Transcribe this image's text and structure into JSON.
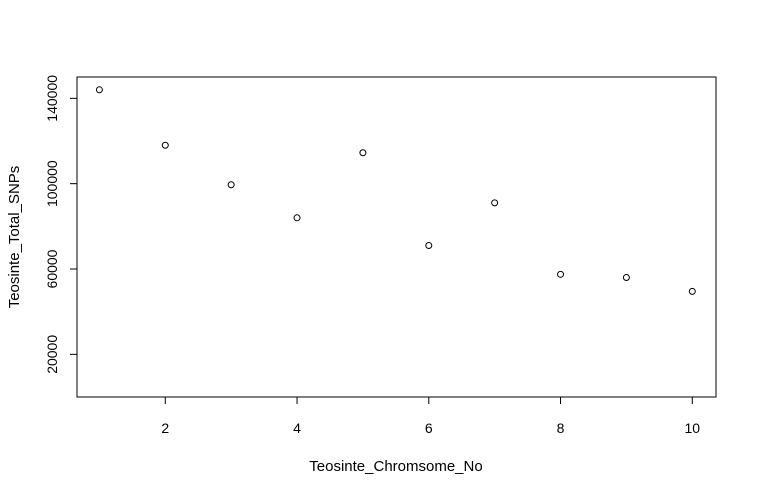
{
  "chart_data": {
    "type": "scatter",
    "xlabel": "Teosinte_Chromsome_No",
    "ylabel": "Teosinte_Total_SNPs",
    "x": [
      1,
      2,
      3,
      4,
      5,
      6,
      7,
      8,
      9,
      10
    ],
    "y": [
      144000,
      118000,
      99500,
      84000,
      114500,
      71000,
      91000,
      57500,
      56000,
      49500
    ],
    "xlim": [
      0.66,
      10.36
    ],
    "ylim": [
      0,
      150000
    ],
    "x_ticks": [
      2,
      4,
      6,
      8,
      10
    ],
    "x_tick_labels": [
      "2",
      "4",
      "6",
      "8",
      "10"
    ],
    "y_ticks": [
      20000,
      60000,
      100000,
      140000
    ],
    "y_tick_labels": [
      "20000",
      "60000",
      "100000",
      "140000"
    ],
    "marker": "open-circle",
    "marker_color": "#000000",
    "grid": false,
    "box": true
  }
}
